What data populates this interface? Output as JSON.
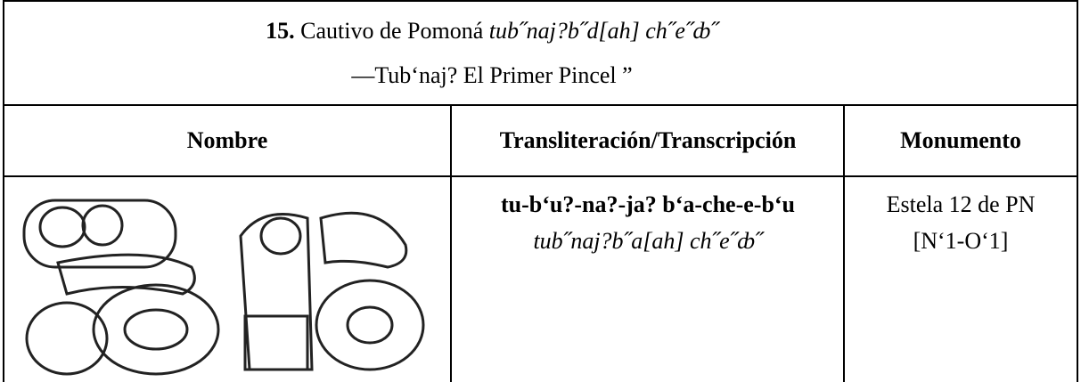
{
  "title": {
    "number": "15.",
    "text": "Cautivo de Pomoná",
    "italic": "tub˝naj?b˝d[ah] ch˝e˝ȸ˝",
    "subtitle": "—Tub‘naj? El Primer Pincel ”"
  },
  "table": {
    "headers": [
      "Nombre",
      "Transliteración/Transcripción",
      "Monumento"
    ],
    "rows": [
      {
        "transliteration": "tu-b‘u?-na?-ja? b‘a-che-e-b‘u",
        "transcription": "tub˝naj?b˝a[ah] ch˝e˝ȸ˝",
        "monument": "Estela 12 de PN",
        "reference": "[N‘1-O‘1]"
      }
    ]
  }
}
